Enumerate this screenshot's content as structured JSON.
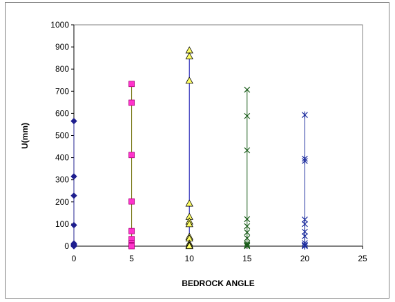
{
  "chart_data": {
    "type": "scatter",
    "title": "",
    "xlabel": "BEDROCK ANGLE",
    "ylabel": "U(mm)",
    "xlim": [
      0,
      25
    ],
    "ylim": [
      0,
      1000
    ],
    "x_ticks": [
      "0",
      "5",
      "10",
      "15",
      "20",
      "25"
    ],
    "y_ticks": [
      "0",
      "100",
      "200",
      "300",
      "400",
      "500",
      "600",
      "700",
      "800",
      "900",
      "1000"
    ],
    "grid": false,
    "legend": "none",
    "series": [
      {
        "x": 0,
        "marker": "diamond",
        "fill": "#1f1f8f",
        "stroke": "#1f1f8f",
        "line_color": "#1f1f8f",
        "values": [
          565,
          315,
          228,
          95,
          12,
          8,
          4,
          2,
          1,
          0
        ]
      },
      {
        "x": 5,
        "marker": "square",
        "fill": "#ff33cc",
        "stroke": "#aa0077",
        "line_color": "#6b6b00",
        "values": [
          733,
          648,
          412,
          202,
          68,
          32,
          14,
          5,
          1,
          0
        ]
      },
      {
        "x": 10,
        "marker": "triangle",
        "fill": "#ffff66",
        "stroke": "#000000",
        "line_color": "#0000aa",
        "values": [
          885,
          858,
          748,
          193,
          133,
          112,
          100,
          43,
          35,
          12,
          5,
          1
        ]
      },
      {
        "x": 15,
        "marker": "x",
        "fill": "none",
        "stroke": "#1a5c1a",
        "line_color": "#1a5c1a",
        "values": [
          707,
          588,
          433,
          122,
          90,
          62,
          36,
          12,
          6,
          2,
          0
        ]
      },
      {
        "x": 20,
        "marker": "star",
        "fill": "none",
        "stroke": "#1f2f9f",
        "line_color": "#1f2f9f",
        "values": [
          593,
          395,
          385,
          120,
          100,
          65,
          45,
          14,
          6,
          2,
          0
        ]
      }
    ]
  }
}
